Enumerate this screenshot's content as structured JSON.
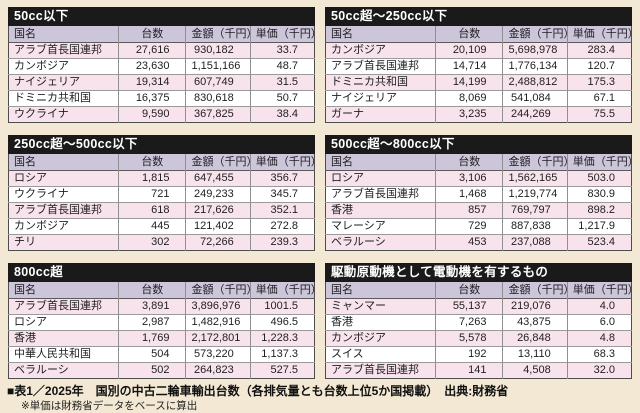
{
  "colors": {
    "page_background": "#f2e8d3",
    "title_bar": "#1a1a1a",
    "title_text": "#ffffff",
    "header_row": "#cdc5da",
    "row_pink": "#f8e3ed",
    "row_white": "#ffffff",
    "grid_line": "#8f8f8f"
  },
  "table_headers": [
    "国名",
    "台数",
    "金額（千円）",
    "単価（千円）"
  ],
  "tables": [
    {
      "title": "50cc以下",
      "rows": [
        [
          "アラブ首長国連邦",
          "27,616",
          "930,182",
          "33.7"
        ],
        [
          "カンボジア",
          "23,630",
          "1,151,166",
          "48.7"
        ],
        [
          "ナイジェリア",
          "19,314",
          "607,749",
          "31.5"
        ],
        [
          "ドミニカ共和国",
          "16,375",
          "830,618",
          "50.7"
        ],
        [
          "ウクライナ",
          "9,590",
          "367,825",
          "38.4"
        ]
      ]
    },
    {
      "title": "50cc超～250cc以下",
      "rows": [
        [
          "カンボジア",
          "20,109",
          "5,698,978",
          "283.4"
        ],
        [
          "アラブ首長国連邦",
          "14,714",
          "1,776,134",
          "120.7"
        ],
        [
          "ドミニカ共和国",
          "14,199",
          "2,488,812",
          "175.3"
        ],
        [
          "ナイジェリア",
          "8,069",
          "541,084",
          "67.1"
        ],
        [
          "ガーナ",
          "3,235",
          "244,269",
          "75.5"
        ]
      ]
    },
    {
      "title": "250cc超～500cc以下",
      "rows": [
        [
          "ロシア",
          "1,815",
          "647,455",
          "356.7"
        ],
        [
          "ウクライナ",
          "721",
          "249,233",
          "345.7"
        ],
        [
          "アラブ首長国連邦",
          "618",
          "217,626",
          "352.1"
        ],
        [
          "カンボジア",
          "445",
          "121,402",
          "272.8"
        ],
        [
          "チリ",
          "302",
          "72,266",
          "239.3"
        ]
      ]
    },
    {
      "title": "500cc超～800cc以下",
      "rows": [
        [
          "ロシア",
          "3,106",
          "1,562,165",
          "503.0"
        ],
        [
          "アラブ首長国連邦",
          "1,468",
          "1,219,774",
          "830.9"
        ],
        [
          "香港",
          "857",
          "769,797",
          "898.2"
        ],
        [
          "マレーシア",
          "729",
          "887,838",
          "1,217.9"
        ],
        [
          "ベラルーシ",
          "453",
          "237,088",
          "523.4"
        ]
      ]
    },
    {
      "title": "800cc超",
      "rows": [
        [
          "アラブ首長国連邦",
          "3,891",
          "3,896,976",
          "1001.5"
        ],
        [
          "ロシア",
          "2,987",
          "1,482,916",
          "496.5"
        ],
        [
          "香港",
          "1,769",
          "2,172,801",
          "1,228.3"
        ],
        [
          "中華人民共和国",
          "504",
          "573,220",
          "1,137.3"
        ],
        [
          "ベラルーシ",
          "502",
          "264,823",
          "527.5"
        ]
      ]
    },
    {
      "title": "駆動原動機として電動機を有するもの",
      "rows": [
        [
          "ミャンマー",
          "55,137",
          "219,076",
          "4.0"
        ],
        [
          "香港",
          "7,263",
          "43,875",
          "6.0"
        ],
        [
          "カンボジア",
          "5,578",
          "26,848",
          "4.8"
        ],
        [
          "スイス",
          "192",
          "13,110",
          "68.3"
        ],
        [
          "アラブ首長国連邦",
          "141",
          "4,508",
          "32.0"
        ]
      ]
    }
  ],
  "footer": {
    "line1": "■表1／2025年　国別の中古二輪車輸出台数（各排気量とも台数上位5か国掲載）　出典:財務省",
    "line2": "※単価は財務省データをベースに算出"
  }
}
